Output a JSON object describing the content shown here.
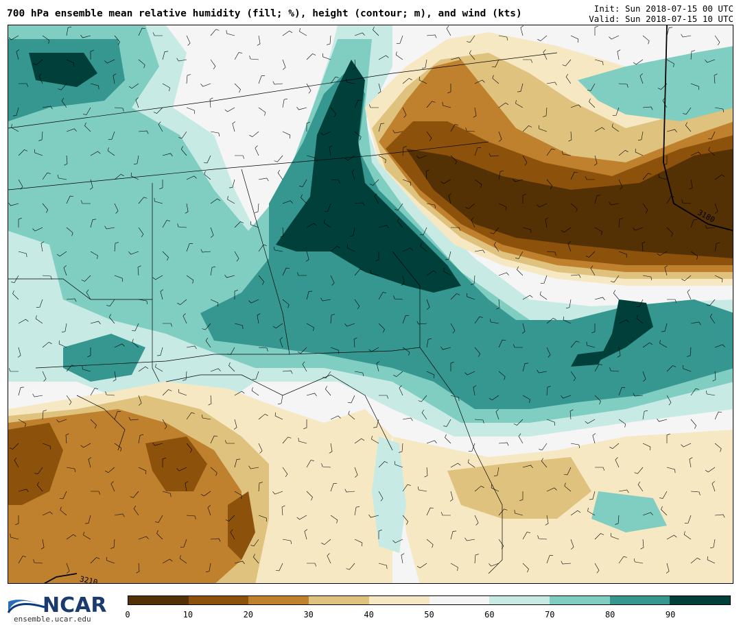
{
  "header": {
    "title": "700 hPa ensemble mean relative humidity (fill; %), height (contour; m), and wind (kts)",
    "init": "Init: Sun 2018-07-15 00 UTC",
    "valid": "Valid: Sun 2018-07-15 10 UTC"
  },
  "map": {
    "contour_labels": [
      "3180",
      "3210"
    ],
    "colors": {
      "rh_0_10": "#543005",
      "rh_10_20": "#8c510a",
      "rh_20_30": "#bf812d",
      "rh_30_40": "#dfc27d",
      "rh_40_50": "#f6e8c3",
      "rh_50_60": "#f5f5f5",
      "rh_60_70": "#c7eae5",
      "rh_70_80": "#80cdc1",
      "rh_80_90": "#35978f",
      "rh_90_100": "#01403a"
    }
  },
  "colorbar": {
    "ticks": [
      "0",
      "10",
      "20",
      "30",
      "40",
      "50",
      "60",
      "70",
      "80",
      "90"
    ],
    "colors": [
      "#543005",
      "#8c510a",
      "#bf812d",
      "#dfc27d",
      "#f6e8c3",
      "#f5f5f5",
      "#c7eae5",
      "#80cdc1",
      "#35978f",
      "#01403a"
    ]
  },
  "logo": {
    "name": "NCAR",
    "url": "ensemble.ucar.edu"
  }
}
